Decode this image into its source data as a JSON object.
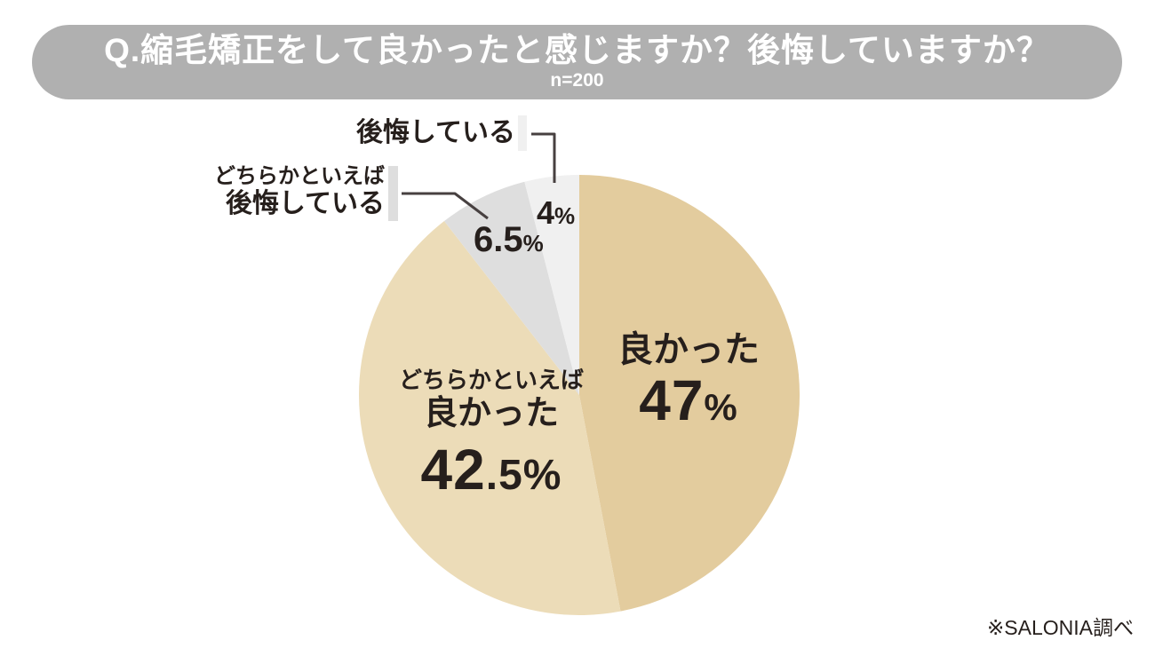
{
  "header": {
    "title": "Q.縮毛矯正をして良かったと感じますか？後悔していますか？",
    "sample": "n=200",
    "bg_color": "#b0b0b0",
    "text_color": "#ffffff"
  },
  "chart_data": {
    "type": "pie",
    "title": "Q.縮毛矯正をして良かったと感じますか？後悔していますか？",
    "sample_size_label": "n=200",
    "start_angle_deg": -90,
    "direction": "clockwise",
    "legend_position": "none",
    "categories": [
      "良かった",
      "どちらかといえば良かった",
      "どちらかといえば後悔している",
      "後悔している"
    ],
    "values": [
      47,
      42.5,
      6.5,
      4
    ],
    "segments": [
      {
        "label": "良かった",
        "value": 47,
        "color": "#e3cc9e",
        "display": {
          "num": "47",
          "frac": "",
          "unit": "%"
        }
      },
      {
        "label": "どちらかといえば良かった",
        "label_line1": "どちらかといえば",
        "label_line2": "良かった",
        "value": 42.5,
        "color": "#ecdcb8",
        "display": {
          "num": "42",
          "frac": ".5",
          "unit": "%"
        }
      },
      {
        "label": "どちらかといえば後悔している",
        "label_line1": "どちらかといえば",
        "label_line2": "後悔している",
        "value": 6.5,
        "color": "#dedede",
        "display": {
          "num": "6.5",
          "frac": "",
          "unit": "%"
        }
      },
      {
        "label": "後悔している",
        "value": 4,
        "color": "#f0f0f0",
        "display": {
          "num": "4",
          "frac": "",
          "unit": "%"
        }
      }
    ]
  },
  "source": {
    "text": "※SALONIA調べ"
  },
  "colors": {
    "text": "#261f1c",
    "callout_line": "#474040",
    "header_bg": "#b0b0b0"
  }
}
